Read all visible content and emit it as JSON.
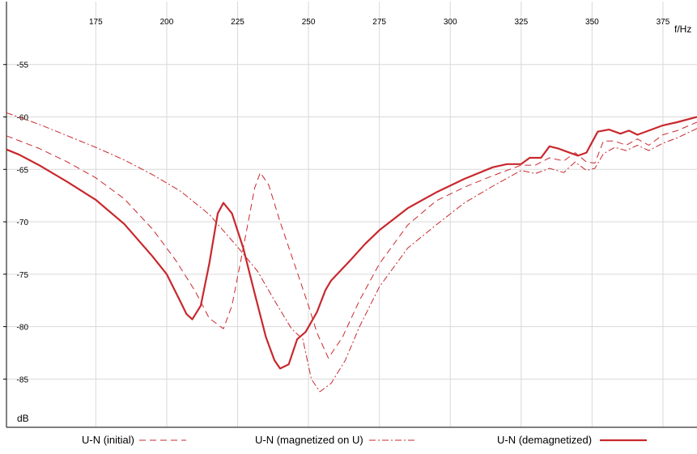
{
  "chart_data": {
    "type": "line",
    "title": "",
    "xlabel": "f/Hz",
    "ylabel": "dB",
    "xlim": [
      143.5,
      387
    ],
    "ylim": [
      -89.6,
      -49
    ],
    "x_ticks": [
      175,
      200,
      225,
      250,
      275,
      300,
      325,
      350,
      375
    ],
    "y_ticks": [
      -55,
      -60,
      -65,
      -70,
      -75,
      -80,
      -85
    ],
    "grid": true,
    "legend_position": "bottom",
    "color": "#c8282d",
    "series": [
      {
        "name": "U-N (initial)",
        "style": "dashed",
        "points": [
          [
            143.5,
            -61.8
          ],
          [
            155,
            -63
          ],
          [
            165,
            -64.3
          ],
          [
            175,
            -65.8
          ],
          [
            185,
            -67.8
          ],
          [
            195,
            -70.7
          ],
          [
            203,
            -73.6
          ],
          [
            210,
            -76.6
          ],
          [
            215,
            -79.2
          ],
          [
            220,
            -80.2
          ],
          [
            223,
            -78
          ],
          [
            227,
            -72.5
          ],
          [
            231,
            -66.8
          ],
          [
            233,
            -65.3
          ],
          [
            236,
            -66.5
          ],
          [
            240,
            -70
          ],
          [
            245,
            -74
          ],
          [
            250,
            -78
          ],
          [
            253,
            -80.6
          ],
          [
            257,
            -83
          ],
          [
            262,
            -81
          ],
          [
            268,
            -77.5
          ],
          [
            275,
            -74
          ],
          [
            285,
            -70.3
          ],
          [
            295,
            -68
          ],
          [
            305,
            -66.7
          ],
          [
            315,
            -65.6
          ],
          [
            325,
            -64.6
          ],
          [
            330,
            -64.6
          ],
          [
            335,
            -63.9
          ],
          [
            340,
            -64.2
          ],
          [
            344,
            -63.4
          ],
          [
            348,
            -64.3
          ],
          [
            351,
            -64.4
          ],
          [
            354,
            -62.3
          ],
          [
            358,
            -62.3
          ],
          [
            362,
            -62.7
          ],
          [
            366,
            -62.1
          ],
          [
            370,
            -62.7
          ],
          [
            375,
            -61.7
          ],
          [
            380,
            -61.3
          ],
          [
            387,
            -60.5
          ]
        ]
      },
      {
        "name": "U-N (magnetized on U)",
        "style": "dashdot",
        "points": [
          [
            143.5,
            -59.6
          ],
          [
            155,
            -60.7
          ],
          [
            165,
            -61.8
          ],
          [
            175,
            -62.9
          ],
          [
            185,
            -64.1
          ],
          [
            195,
            -65.5
          ],
          [
            205,
            -67.1
          ],
          [
            215,
            -69.3
          ],
          [
            225,
            -72.4
          ],
          [
            232,
            -74.7
          ],
          [
            238,
            -77.5
          ],
          [
            244,
            -80.2
          ],
          [
            248,
            -81.2
          ],
          [
            251,
            -85
          ],
          [
            254,
            -86.2
          ],
          [
            258,
            -85.4
          ],
          [
            263,
            -83.2
          ],
          [
            268,
            -80
          ],
          [
            275,
            -76.2
          ],
          [
            285,
            -72.5
          ],
          [
            295,
            -70.3
          ],
          [
            305,
            -68.2
          ],
          [
            315,
            -66.6
          ],
          [
            325,
            -65.1
          ],
          [
            330,
            -65.4
          ],
          [
            335,
            -64.9
          ],
          [
            340,
            -65.3
          ],
          [
            344,
            -64.3
          ],
          [
            348,
            -65.1
          ],
          [
            351,
            -64.9
          ],
          [
            354,
            -63.5
          ],
          [
            358,
            -62.9
          ],
          [
            362,
            -63.2
          ],
          [
            366,
            -62.7
          ],
          [
            370,
            -63.2
          ],
          [
            375,
            -62.5
          ],
          [
            380,
            -62
          ],
          [
            387,
            -61.1
          ]
        ]
      },
      {
        "name": "U-N (demagnetized)",
        "style": "solid",
        "points": [
          [
            143.5,
            -63.1
          ],
          [
            148,
            -63.6
          ],
          [
            155,
            -64.6
          ],
          [
            165,
            -66.2
          ],
          [
            175,
            -67.9
          ],
          [
            185,
            -70.2
          ],
          [
            195,
            -73.3
          ],
          [
            200,
            -75
          ],
          [
            205,
            -77.7
          ],
          [
            207,
            -78.8
          ],
          [
            209,
            -79.3
          ],
          [
            212,
            -78
          ],
          [
            215,
            -74
          ],
          [
            218,
            -69.2
          ],
          [
            220,
            -68.2
          ],
          [
            223,
            -69.2
          ],
          [
            227,
            -72.5
          ],
          [
            231,
            -76.8
          ],
          [
            235,
            -81
          ],
          [
            238,
            -83.2
          ],
          [
            240,
            -84
          ],
          [
            243,
            -83.6
          ],
          [
            246,
            -81.2
          ],
          [
            249,
            -80.5
          ],
          [
            253,
            -78.6
          ],
          [
            256,
            -76.5
          ],
          [
            258,
            -75.6
          ],
          [
            265,
            -73.6
          ],
          [
            270,
            -72.1
          ],
          [
            275,
            -70.8
          ],
          [
            285,
            -68.7
          ],
          [
            295,
            -67.2
          ],
          [
            305,
            -65.9
          ],
          [
            315,
            -64.8
          ],
          [
            320,
            -64.5
          ],
          [
            325,
            -64.5
          ],
          [
            328,
            -63.9
          ],
          [
            332,
            -63.9
          ],
          [
            335,
            -62.8
          ],
          [
            338,
            -63
          ],
          [
            341,
            -63.3
          ],
          [
            345,
            -63.7
          ],
          [
            348,
            -63.4
          ],
          [
            352,
            -61.4
          ],
          [
            356,
            -61.2
          ],
          [
            360,
            -61.6
          ],
          [
            363,
            -61.3
          ],
          [
            366,
            -61.7
          ],
          [
            370,
            -61.3
          ],
          [
            375,
            -60.8
          ],
          [
            380,
            -60.5
          ],
          [
            387,
            -60
          ]
        ]
      }
    ]
  }
}
